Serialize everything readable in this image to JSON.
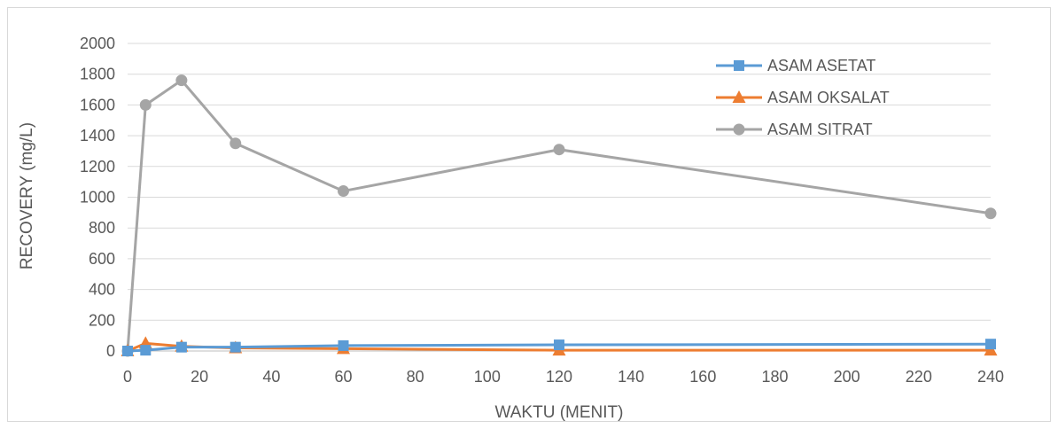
{
  "chart_data": {
    "type": "line",
    "title": "",
    "xlabel": "WAKTU (MENIT)",
    "ylabel": "RECOVERY (mg/L)",
    "xlim": [
      0,
      240
    ],
    "ylim": [
      0,
      2000
    ],
    "xticks": [
      0,
      20,
      40,
      60,
      80,
      100,
      120,
      140,
      160,
      180,
      200,
      220,
      240
    ],
    "yticks": [
      0,
      200,
      400,
      600,
      800,
      1000,
      1200,
      1400,
      1600,
      1800,
      2000
    ],
    "grid": true,
    "legend_position": "top-right",
    "series": [
      {
        "name": "ASAM ASETAT",
        "color": "#5b9bd5",
        "marker": "square",
        "x": [
          0,
          5,
          15,
          30,
          60,
          120,
          240
        ],
        "y": [
          0,
          5,
          25,
          25,
          35,
          40,
          45
        ]
      },
      {
        "name": "ASAM OKSALAT",
        "color": "#ed7d31",
        "marker": "triangle",
        "x": [
          0,
          5,
          15,
          30,
          60,
          120,
          240
        ],
        "y": [
          0,
          50,
          30,
          20,
          15,
          5,
          5
        ]
      },
      {
        "name": "ASAM SITRAT",
        "color": "#a5a5a5",
        "marker": "circle",
        "x": [
          0,
          5,
          15,
          30,
          60,
          120,
          240
        ],
        "y": [
          0,
          1600,
          1760,
          1350,
          1040,
          1310,
          895
        ]
      }
    ]
  }
}
